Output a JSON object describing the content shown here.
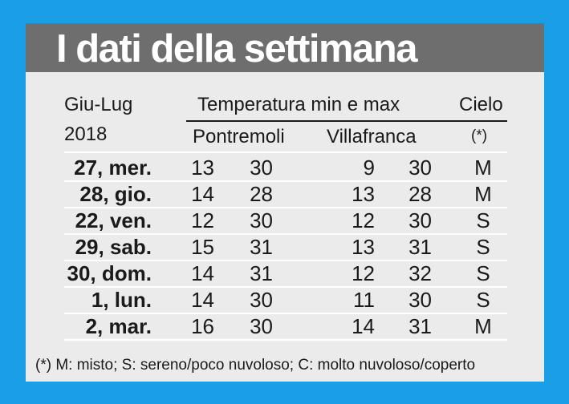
{
  "title": "I dati della settimana",
  "header": {
    "period": "Giu-Lug",
    "temperature": "Temperatura min e max",
    "sky": "Cielo",
    "year": "2018",
    "city1": "Pontremoli",
    "city2": "Villafranca",
    "sky_note_mark": "(*)"
  },
  "rows": [
    {
      "date": "27, mer.",
      "p_min": "13",
      "p_max": "30",
      "v_min": "9",
      "v_max": "30",
      "sky": "M"
    },
    {
      "date": "28, gio.",
      "p_min": "14",
      "p_max": "28",
      "v_min": "13",
      "v_max": "28",
      "sky": "M"
    },
    {
      "date": "22, ven.",
      "p_min": "12",
      "p_max": "30",
      "v_min": "12",
      "v_max": "30",
      "sky": "S"
    },
    {
      "date": "29, sab.",
      "p_min": "15",
      "p_max": "31",
      "v_min": "13",
      "v_max": "31",
      "sky": "S"
    },
    {
      "date": "30, dom.",
      "p_min": "14",
      "p_max": "31",
      "v_min": "12",
      "v_max": "32",
      "sky": "S"
    },
    {
      "date": "1, lun.",
      "p_min": "14",
      "p_max": "30",
      "v_min": "11",
      "v_max": "30",
      "sky": "S"
    },
    {
      "date": "2, mar.",
      "p_min": "16",
      "p_max": "30",
      "v_min": "14",
      "v_max": "31",
      "sky": "M"
    }
  ],
  "footnote": "(*) M: misto; S: sereno/poco nuvoloso; C: molto nuvoloso/coperto",
  "colors": {
    "background": "#1a9ee6",
    "title_bar": "#6e6e6e",
    "card": "#ebebeb",
    "text": "#1a1a1a"
  }
}
